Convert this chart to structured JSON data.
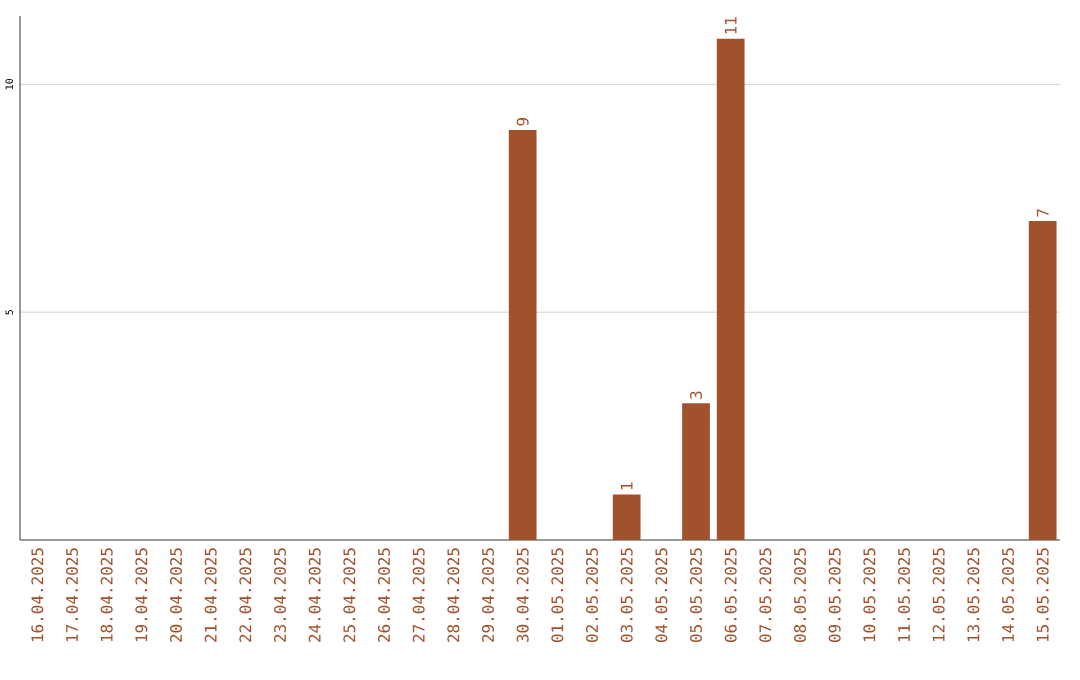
{
  "chart_data": {
    "type": "bar",
    "categories": [
      "16.04.2025",
      "17.04.2025",
      "18.04.2025",
      "19.04.2025",
      "20.04.2025",
      "21.04.2025",
      "22.04.2025",
      "23.04.2025",
      "24.04.2025",
      "25.04.2025",
      "26.04.2025",
      "27.04.2025",
      "28.04.2025",
      "29.04.2025",
      "30.04.2025",
      "01.05.2025",
      "02.05.2025",
      "03.05.2025",
      "04.05.2025",
      "05.05.2025",
      "06.05.2025",
      "07.05.2025",
      "08.05.2025",
      "09.05.2025",
      "10.05.2025",
      "11.05.2025",
      "12.05.2025",
      "13.05.2025",
      "14.05.2025",
      "15.05.2025"
    ],
    "values": [
      0,
      0,
      0,
      0,
      0,
      0,
      0,
      0,
      0,
      0,
      0,
      0,
      0,
      0,
      9,
      0,
      0,
      1,
      0,
      3,
      11,
      0,
      0,
      0,
      0,
      0,
      0,
      0,
      0,
      7
    ],
    "value_labels": [
      null,
      null,
      null,
      null,
      null,
      null,
      null,
      null,
      null,
      null,
      null,
      null,
      null,
      null,
      "9",
      null,
      null,
      "1",
      null,
      "3",
      "11",
      null,
      null,
      null,
      null,
      null,
      null,
      null,
      null,
      "7"
    ],
    "color": "#a0522d",
    "ylim": [
      0,
      11.5
    ],
    "yticks": [
      5,
      10
    ],
    "grid": "y"
  }
}
